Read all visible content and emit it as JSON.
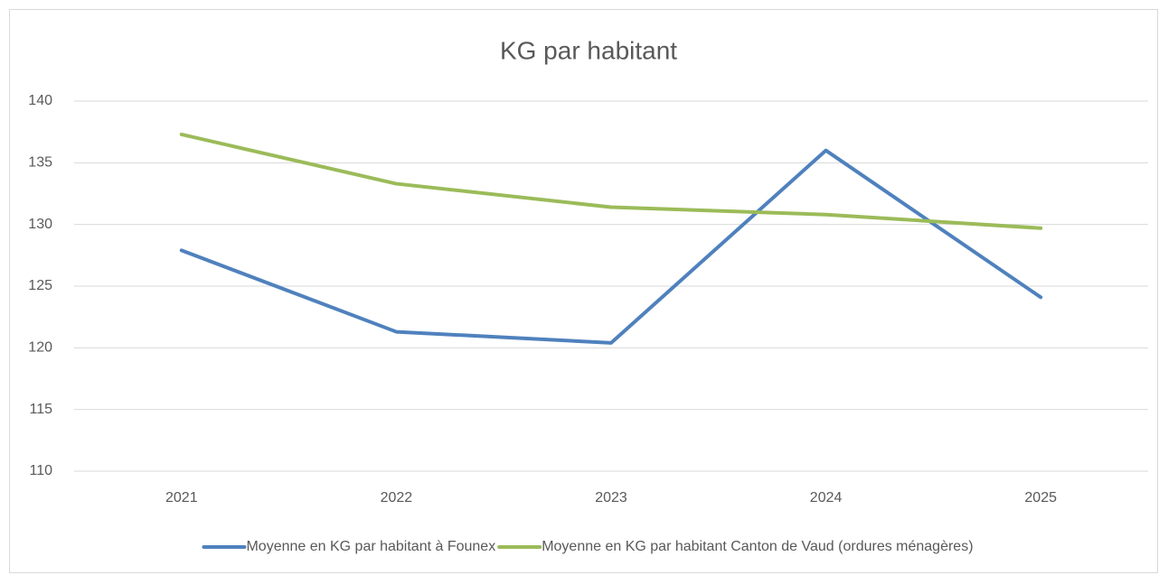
{
  "chart_data": {
    "type": "line",
    "title": "KG par habitant",
    "categories": [
      "2021",
      "2022",
      "2023",
      "2024",
      "2025"
    ],
    "series": [
      {
        "name": "Moyenne en KG par habitant à Founex",
        "color": "#4f81bd",
        "values": [
          127.9,
          121.3,
          120.4,
          136.0,
          124.1
        ]
      },
      {
        "name": "Moyenne en KG par habitant Canton de Vaud (ordures ménagères)",
        "color": "#9bbb59",
        "values": [
          137.3,
          133.3,
          131.4,
          130.8,
          129.7
        ]
      }
    ],
    "ylim": [
      110,
      140
    ],
    "yticks": [
      110,
      115,
      120,
      125,
      130,
      135,
      140
    ],
    "grid": true,
    "legend": "bottom"
  }
}
